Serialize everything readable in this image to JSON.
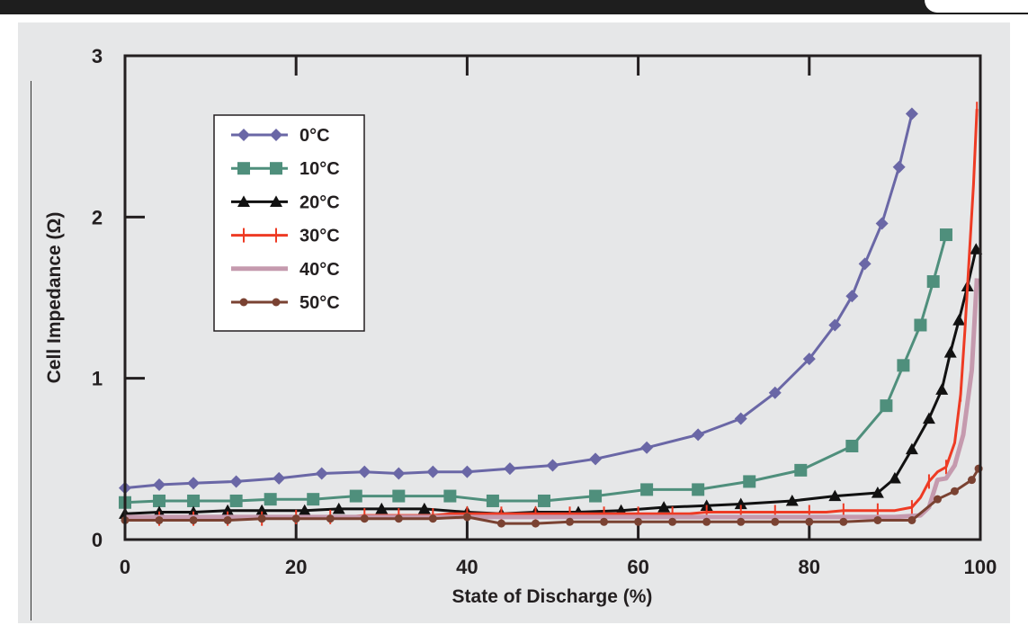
{
  "chart_data": {
    "type": "line",
    "title": "",
    "xlabel": "State of Discharge (%)",
    "ylabel": "Cell Impedance (Ω)",
    "xlim": [
      0,
      100
    ],
    "ylim": [
      0,
      3
    ],
    "x_ticks": [
      0,
      20,
      40,
      60,
      80,
      100
    ],
    "y_ticks": [
      0,
      1,
      2,
      3
    ],
    "grid": false,
    "legend": "top-left",
    "series": [
      {
        "name": "0°C",
        "color": "#6a67a6",
        "marker": "diamond",
        "marker_every": 1,
        "points": [
          [
            0,
            0.32
          ],
          [
            4,
            0.34
          ],
          [
            8,
            0.35
          ],
          [
            13,
            0.36
          ],
          [
            18,
            0.38
          ],
          [
            23,
            0.41
          ],
          [
            28,
            0.42
          ],
          [
            32,
            0.41
          ],
          [
            36,
            0.42
          ],
          [
            40,
            0.42
          ],
          [
            45,
            0.44
          ],
          [
            50,
            0.46
          ],
          [
            55,
            0.5
          ],
          [
            61,
            0.57
          ],
          [
            67,
            0.65
          ],
          [
            72,
            0.75
          ],
          [
            76,
            0.91
          ],
          [
            80,
            1.12
          ],
          [
            83,
            1.33
          ],
          [
            85,
            1.51
          ],
          [
            86.5,
            1.71
          ],
          [
            88.5,
            1.96
          ],
          [
            90.5,
            2.31
          ],
          [
            92,
            2.64
          ]
        ]
      },
      {
        "name": "10°C",
        "color": "#4f8f7c",
        "marker": "square",
        "marker_every": 1,
        "points": [
          [
            0,
            0.23
          ],
          [
            4,
            0.24
          ],
          [
            8,
            0.24
          ],
          [
            13,
            0.24
          ],
          [
            17,
            0.25
          ],
          [
            22,
            0.25
          ],
          [
            27,
            0.27
          ],
          [
            32,
            0.27
          ],
          [
            38,
            0.27
          ],
          [
            43,
            0.24
          ],
          [
            49,
            0.24
          ],
          [
            55,
            0.27
          ],
          [
            61,
            0.31
          ],
          [
            67,
            0.31
          ],
          [
            73,
            0.36
          ],
          [
            79,
            0.43
          ],
          [
            85,
            0.58
          ],
          [
            89,
            0.83
          ],
          [
            91,
            1.08
          ],
          [
            93,
            1.33
          ],
          [
            94.5,
            1.6
          ],
          [
            96,
            1.89
          ]
        ]
      },
      {
        "name": "20°C",
        "color": "#111111",
        "marker": "triangle",
        "marker_every": 1,
        "points": [
          [
            0,
            0.16
          ],
          [
            4,
            0.17
          ],
          [
            8,
            0.17
          ],
          [
            12,
            0.18
          ],
          [
            16,
            0.18
          ],
          [
            21,
            0.18
          ],
          [
            25,
            0.19
          ],
          [
            30,
            0.19
          ],
          [
            35,
            0.19
          ],
          [
            40,
            0.17
          ],
          [
            44,
            0.16
          ],
          [
            48,
            0.17
          ],
          [
            53,
            0.17
          ],
          [
            58,
            0.18
          ],
          [
            63,
            0.2
          ],
          [
            68,
            0.21
          ],
          [
            72,
            0.22
          ],
          [
            78,
            0.24
          ],
          [
            83,
            0.27
          ],
          [
            88,
            0.29
          ],
          [
            90,
            0.38
          ],
          [
            92,
            0.56
          ],
          [
            94,
            0.75
          ],
          [
            95.5,
            0.93
          ],
          [
            96.5,
            1.16
          ],
          [
            97.5,
            1.36
          ],
          [
            98.5,
            1.57
          ],
          [
            99.5,
            1.8
          ]
        ]
      },
      {
        "name": "30°C",
        "color": "#ee3b24",
        "marker": "plus",
        "marker_every": 2,
        "points": [
          [
            0,
            0.13
          ],
          [
            2,
            0.13
          ],
          [
            4,
            0.13
          ],
          [
            6,
            0.13
          ],
          [
            8,
            0.13
          ],
          [
            10,
            0.13
          ],
          [
            12,
            0.13
          ],
          [
            14,
            0.13
          ],
          [
            16,
            0.13
          ],
          [
            18,
            0.14
          ],
          [
            20,
            0.14
          ],
          [
            22,
            0.14
          ],
          [
            24,
            0.14
          ],
          [
            26,
            0.14
          ],
          [
            28,
            0.15
          ],
          [
            30,
            0.15
          ],
          [
            32,
            0.15
          ],
          [
            34,
            0.15
          ],
          [
            36,
            0.15
          ],
          [
            38,
            0.16
          ],
          [
            40,
            0.16
          ],
          [
            42,
            0.16
          ],
          [
            44,
            0.16
          ],
          [
            46,
            0.16
          ],
          [
            48,
            0.16
          ],
          [
            50,
            0.16
          ],
          [
            52,
            0.16
          ],
          [
            54,
            0.16
          ],
          [
            56,
            0.16
          ],
          [
            58,
            0.16
          ],
          [
            60,
            0.16
          ],
          [
            62,
            0.16
          ],
          [
            64,
            0.16
          ],
          [
            66,
            0.16
          ],
          [
            68,
            0.17
          ],
          [
            70,
            0.17
          ],
          [
            72,
            0.17
          ],
          [
            74,
            0.17
          ],
          [
            76,
            0.17
          ],
          [
            78,
            0.17
          ],
          [
            80,
            0.17
          ],
          [
            82,
            0.17
          ],
          [
            84,
            0.18
          ],
          [
            86,
            0.18
          ],
          [
            88,
            0.18
          ],
          [
            90,
            0.18
          ],
          [
            92,
            0.2
          ],
          [
            93,
            0.26
          ],
          [
            94,
            0.36
          ],
          [
            95,
            0.42
          ],
          [
            96,
            0.45
          ],
          [
            97,
            0.6
          ],
          [
            97.7,
            0.9
          ],
          [
            98.2,
            1.3
          ],
          [
            98.7,
            1.75
          ],
          [
            99.2,
            2.2
          ],
          [
            99.6,
            2.67
          ]
        ]
      },
      {
        "name": "40°C",
        "color": "#c59aae",
        "marker": "none",
        "marker_every": 1,
        "points": [
          [
            0,
            0.14
          ],
          [
            10,
            0.14
          ],
          [
            20,
            0.14
          ],
          [
            30,
            0.14
          ],
          [
            40,
            0.14
          ],
          [
            50,
            0.14
          ],
          [
            60,
            0.14
          ],
          [
            70,
            0.14
          ],
          [
            80,
            0.14
          ],
          [
            90,
            0.14
          ],
          [
            93,
            0.15
          ],
          [
            94,
            0.2
          ],
          [
            95,
            0.37
          ],
          [
            96,
            0.38
          ],
          [
            97,
            0.46
          ],
          [
            98,
            0.65
          ],
          [
            99,
            1.05
          ],
          [
            99.6,
            1.62
          ]
        ]
      },
      {
        "name": "50°C",
        "color": "#7a4232",
        "marker": "circle",
        "marker_every": 1,
        "points": [
          [
            0,
            0.12
          ],
          [
            4,
            0.12
          ],
          [
            8,
            0.12
          ],
          [
            12,
            0.12
          ],
          [
            16,
            0.13
          ],
          [
            20,
            0.13
          ],
          [
            24,
            0.13
          ],
          [
            28,
            0.13
          ],
          [
            32,
            0.13
          ],
          [
            36,
            0.13
          ],
          [
            40,
            0.14
          ],
          [
            44,
            0.1
          ],
          [
            48,
            0.1
          ],
          [
            52,
            0.11
          ],
          [
            56,
            0.11
          ],
          [
            60,
            0.11
          ],
          [
            64,
            0.11
          ],
          [
            68,
            0.11
          ],
          [
            72,
            0.11
          ],
          [
            76,
            0.11
          ],
          [
            80,
            0.11
          ],
          [
            84,
            0.11
          ],
          [
            88,
            0.12
          ],
          [
            92,
            0.12
          ],
          [
            95,
            0.25
          ],
          [
            97,
            0.3
          ],
          [
            99,
            0.37
          ],
          [
            99.8,
            0.44
          ]
        ]
      }
    ]
  }
}
